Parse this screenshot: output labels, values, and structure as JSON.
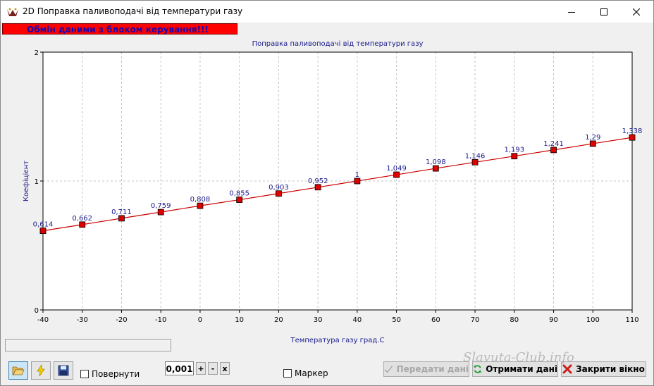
{
  "window": {
    "title": "2D Поправка паливоподачі від температури газу",
    "colors": {
      "titlebar": "#ffffff",
      "body": "#f0f0f0"
    }
  },
  "status_banner": {
    "text": "Обмін даними з блоком керування!!!",
    "bg_color": "#ff0000",
    "text_color": "#1a00b0"
  },
  "chart_data": {
    "type": "line",
    "title": "Поправка паливоподачі від температури газу",
    "xlabel": "Температура газу град.С",
    "ylabel": "Коефіцієнт",
    "x": [
      -40,
      -30,
      -20,
      -10,
      0,
      10,
      20,
      30,
      40,
      50,
      60,
      70,
      80,
      90,
      100,
      110
    ],
    "y": [
      0.614,
      0.662,
      0.711,
      0.759,
      0.808,
      0.855,
      0.903,
      0.952,
      1,
      1.049,
      1.098,
      1.146,
      1.193,
      1.241,
      1.29,
      1.338
    ],
    "labels": [
      "0,614",
      "0,662",
      "0,711",
      "0,759",
      "0,808",
      "0,855",
      "0,903",
      "0,952",
      "1",
      "1,049",
      "1,098",
      "1,146",
      "1,193",
      "1,241",
      "1,29",
      "1,338"
    ],
    "x_ticks": [
      "-40",
      "-30",
      "-20",
      "-10",
      "0",
      "10",
      "20",
      "30",
      "40",
      "50",
      "60",
      "70",
      "80",
      "90",
      "100",
      "110"
    ],
    "y_ticks": [
      "0",
      "1",
      "2"
    ],
    "xlim": [
      -40,
      110
    ],
    "ylim": [
      0,
      2
    ],
    "grid": true,
    "line_color": "#cc0000",
    "marker_color": "#dd0000",
    "label_color": "#1a1a8c"
  },
  "toolbar": {
    "open_icon": "folder-open-icon",
    "flash_icon": "lightning-icon",
    "save_icon": "floppy-disk-icon",
    "rotate_label": "Повернути",
    "step_value": "0,001",
    "plus_label": "+",
    "minus_label": "-",
    "multiply_label": "x",
    "marker_label": "Маркер",
    "send_label": "Передати дані",
    "receive_label": "Отримати дані",
    "close_label": "Закрити вікно"
  },
  "watermark": {
    "text": "Slavuta-Club.info"
  }
}
